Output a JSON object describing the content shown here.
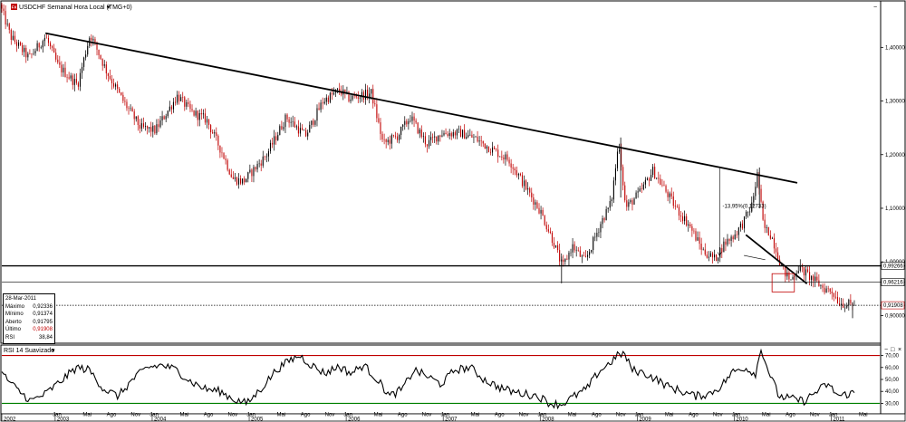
{
  "header": {
    "logo_text": "FX",
    "title": "USDCHF Semanal Hora Local (TMG+0)",
    "menu_glyph": "▾",
    "collapse_glyph": "−"
  },
  "rsi_panel": {
    "title": "RSI 14 Suavizado",
    "menu_glyph": "▾",
    "button_glyphs": [
      "−",
      "□",
      "×"
    ]
  },
  "info_box": {
    "date": "28-Mar-2011",
    "rows": [
      {
        "label": "Máximo",
        "value": "0,92336"
      },
      {
        "label": "Mínimo",
        "value": "0,91374"
      },
      {
        "label": "Aberto",
        "value": "0,91795"
      },
      {
        "label": "Último",
        "value": "0,91908"
      },
      {
        "label": "RSI",
        "value": "38,84"
      }
    ]
  },
  "colors": {
    "bull": "#000000",
    "bear": "#c00000",
    "rsi_upper": "#c00000",
    "rsi_lower": "#008000",
    "price_badge": "#c00000"
  },
  "chart_data": [
    {
      "type": "candlestick",
      "title": "USDCHF Semanal Hora Local (TMG+0)",
      "x_axis": {
        "months": [
          "Jan",
          "Mai",
          "Ago",
          "Nov",
          "Jan",
          "Mai",
          "Ago",
          "Nov",
          "Jan",
          "Mai",
          "Ago",
          "Nov",
          "Jan",
          "Mai",
          "Ago",
          "Nov",
          "Jan",
          "Mai",
          "Ago",
          "Nov",
          "Jan",
          "Mai",
          "Ago",
          "Nov",
          "Jan",
          "Mai",
          "Ago",
          "Nov",
          "Jan",
          "Mai",
          "Ago",
          "Nov",
          "Jan",
          "Mai",
          "Ago",
          "Nov",
          "Jan"
        ],
        "month_x": [
          2003.02,
          2003.33,
          2003.58,
          2003.83,
          2004.02,
          2004.33,
          2004.58,
          2004.83,
          2005.02,
          2005.33,
          2005.58,
          2005.83,
          2006.02,
          2006.33,
          2006.58,
          2006.83,
          2007.02,
          2007.33,
          2007.58,
          2007.83,
          2008.02,
          2008.33,
          2008.58,
          2008.83,
          2009.02,
          2009.33,
          2009.58,
          2009.83,
          2010.02,
          2010.33,
          2010.58,
          2010.83,
          2011.02,
          2011.33,
          2011.58,
          2011.83,
          2012.02
        ],
        "years": [
          "2002",
          "2003",
          "2004",
          "2005",
          "2006",
          "2007",
          "2008",
          "2009",
          "2010",
          "2011"
        ],
        "year_x": [
          2002.45,
          2003.0,
          2004.0,
          2005.0,
          2006.0,
          2007.0,
          2008.0,
          2009.0,
          2010.0,
          2011.0
        ],
        "range": [
          2002.45,
          2011.5
        ]
      },
      "y_axis": {
        "ticks": [
          1.4,
          1.3,
          1.2,
          1.1,
          1.0,
          0.9
        ],
        "tick_labels": [
          "1,40000",
          "1,30000",
          "1,20000",
          "1,10000",
          "1,00000",
          "0,90000"
        ],
        "range": [
          0.85,
          1.485
        ]
      },
      "price_labels": [
        {
          "value": 0.99266,
          "label": "0,99266"
        },
        {
          "value": 0.96216,
          "label": "0,96216"
        },
        {
          "value": 0.91908,
          "label": "0,91908",
          "highlight": true
        }
      ],
      "horizontal_lines": [
        {
          "value": 0.99266,
          "style": "thick"
        },
        {
          "value": 0.96216,
          "style": "thin"
        },
        {
          "value": 0.91908,
          "style": "dotted"
        }
      ],
      "trendlines": [
        {
          "from": [
            2002.9,
            1.4265
          ],
          "to": [
            2010.65,
            1.1475
          ],
          "style": "thick"
        },
        {
          "from": [
            2010.12,
            1.0505
          ],
          "to": [
            2010.75,
            0.9592
          ],
          "style": "thick"
        },
        {
          "from": [
            2010.1,
            1.012
          ],
          "to": [
            2010.32,
            1.004
          ],
          "style": "thin"
        }
      ],
      "annotation": {
        "text": "-13,95%(0,12733)",
        "x": 2009.88,
        "y": 1.101
      },
      "drawdown_marker": {
        "x": 2009.85,
        "from": 1.1745,
        "to": 1.0112
      },
      "red_box": {
        "x1": 2010.39,
        "x2": 2010.62,
        "y1": 0.944,
        "y2": 0.978
      },
      "anchors": [
        [
          2002.45,
          1.48
        ],
        [
          2002.56,
          1.42
        ],
        [
          2002.75,
          1.38
        ],
        [
          2002.92,
          1.42
        ],
        [
          2003.05,
          1.365
        ],
        [
          2003.25,
          1.33
        ],
        [
          2003.38,
          1.425
        ],
        [
          2003.55,
          1.355
        ],
        [
          2003.72,
          1.3
        ],
        [
          2003.9,
          1.25
        ],
        [
          2004.05,
          1.245
        ],
        [
          2004.28,
          1.31
        ],
        [
          2004.42,
          1.28
        ],
        [
          2004.58,
          1.265
        ],
        [
          2004.75,
          1.2
        ],
        [
          2004.85,
          1.155
        ],
        [
          2004.96,
          1.15
        ],
        [
          2005.2,
          1.2
        ],
        [
          2005.4,
          1.27
        ],
        [
          2005.6,
          1.235
        ],
        [
          2005.78,
          1.3
        ],
        [
          2005.95,
          1.32
        ],
        [
          2006.05,
          1.305
        ],
        [
          2006.28,
          1.315
        ],
        [
          2006.4,
          1.22
        ],
        [
          2006.55,
          1.235
        ],
        [
          2006.68,
          1.27
        ],
        [
          2006.85,
          1.22
        ],
        [
          2007.0,
          1.24
        ],
        [
          2007.2,
          1.24
        ],
        [
          2007.35,
          1.23
        ],
        [
          2007.52,
          1.21
        ],
        [
          2007.7,
          1.19
        ],
        [
          2007.9,
          1.13
        ],
        [
          2008.02,
          1.095
        ],
        [
          2008.15,
          1.04
        ],
        [
          2008.25,
          0.99
        ],
        [
          2008.35,
          1.03
        ],
        [
          2008.48,
          1.0
        ],
        [
          2008.65,
          1.075
        ],
        [
          2008.75,
          1.11
        ],
        [
          2008.83,
          1.225
        ],
        [
          2008.9,
          1.1
        ],
        [
          2009.05,
          1.13
        ],
        [
          2009.18,
          1.17
        ],
        [
          2009.32,
          1.13
        ],
        [
          2009.42,
          1.1
        ],
        [
          2009.55,
          1.07
        ],
        [
          2009.7,
          1.02
        ],
        [
          2009.82,
          1.005
        ],
        [
          2009.92,
          1.035
        ],
        [
          2010.02,
          1.05
        ],
        [
          2010.1,
          1.07
        ],
        [
          2010.2,
          1.105
        ],
        [
          2010.26,
          1.165
        ],
        [
          2010.32,
          1.065
        ],
        [
          2010.4,
          1.05
        ],
        [
          2010.52,
          0.985
        ],
        [
          2010.6,
          0.965
        ],
        [
          2010.68,
          0.99
        ],
        [
          2010.78,
          0.975
        ],
        [
          2010.88,
          0.96
        ],
        [
          2010.95,
          0.95
        ],
        [
          2011.03,
          0.945
        ],
        [
          2011.1,
          0.925
        ],
        [
          2011.15,
          0.922
        ],
        [
          2011.24,
          0.9191
        ]
      ]
    },
    {
      "type": "line",
      "title": "RSI 14 Suavizado",
      "y_axis": {
        "ticks": [
          70,
          60,
          50,
          40,
          30
        ],
        "tick_labels": [
          "70,00",
          "60,00",
          "50,00",
          "40,00",
          "30,00"
        ],
        "range": [
          22,
          78
        ]
      },
      "levels": [
        {
          "value": 70,
          "color": "#c00000"
        },
        {
          "value": 30,
          "color": "#008000"
        }
      ],
      "anchors": [
        [
          2002.45,
          55
        ],
        [
          2002.6,
          42
        ],
        [
          2002.75,
          32
        ],
        [
          2002.9,
          38
        ],
        [
          2003.05,
          48
        ],
        [
          2003.22,
          60
        ],
        [
          2003.35,
          58
        ],
        [
          2003.5,
          42
        ],
        [
          2003.65,
          36
        ],
        [
          2003.8,
          50
        ],
        [
          2003.95,
          60
        ],
        [
          2004.1,
          62
        ],
        [
          2004.25,
          58
        ],
        [
          2004.4,
          48
        ],
        [
          2004.55,
          42
        ],
        [
          2004.7,
          40
        ],
        [
          2004.85,
          33
        ],
        [
          2004.98,
          30
        ],
        [
          2005.12,
          42
        ],
        [
          2005.28,
          58
        ],
        [
          2005.42,
          66
        ],
        [
          2005.52,
          70
        ],
        [
          2005.64,
          62
        ],
        [
          2005.78,
          55
        ],
        [
          2005.92,
          61
        ],
        [
          2006.05,
          55
        ],
        [
          2006.18,
          62
        ],
        [
          2006.32,
          50
        ],
        [
          2006.45,
          36
        ],
        [
          2006.58,
          42
        ],
        [
          2006.7,
          58
        ],
        [
          2006.85,
          52
        ],
        [
          2006.98,
          46
        ],
        [
          2007.12,
          58
        ],
        [
          2007.28,
          60
        ],
        [
          2007.42,
          50
        ],
        [
          2007.56,
          44
        ],
        [
          2007.7,
          40
        ],
        [
          2007.84,
          38
        ],
        [
          2007.98,
          36
        ],
        [
          2008.1,
          30
        ],
        [
          2008.22,
          29
        ],
        [
          2008.35,
          36
        ],
        [
          2008.48,
          42
        ],
        [
          2008.6,
          56
        ],
        [
          2008.72,
          64
        ],
        [
          2008.8,
          70
        ],
        [
          2008.86,
          72
        ],
        [
          2008.95,
          58
        ],
        [
          2009.08,
          55
        ],
        [
          2009.2,
          50
        ],
        [
          2009.32,
          44
        ],
        [
          2009.46,
          40
        ],
        [
          2009.6,
          36
        ],
        [
          2009.74,
          38
        ],
        [
          2009.86,
          44
        ],
        [
          2009.98,
          56
        ],
        [
          2010.1,
          60
        ],
        [
          2010.22,
          55
        ],
        [
          2010.28,
          76
        ],
        [
          2010.34,
          60
        ],
        [
          2010.46,
          36
        ],
        [
          2010.58,
          34
        ],
        [
          2010.72,
          32
        ],
        [
          2010.85,
          40
        ],
        [
          2010.96,
          46
        ],
        [
          2011.08,
          36
        ],
        [
          2011.18,
          38
        ],
        [
          2011.24,
          38.84
        ]
      ]
    }
  ]
}
